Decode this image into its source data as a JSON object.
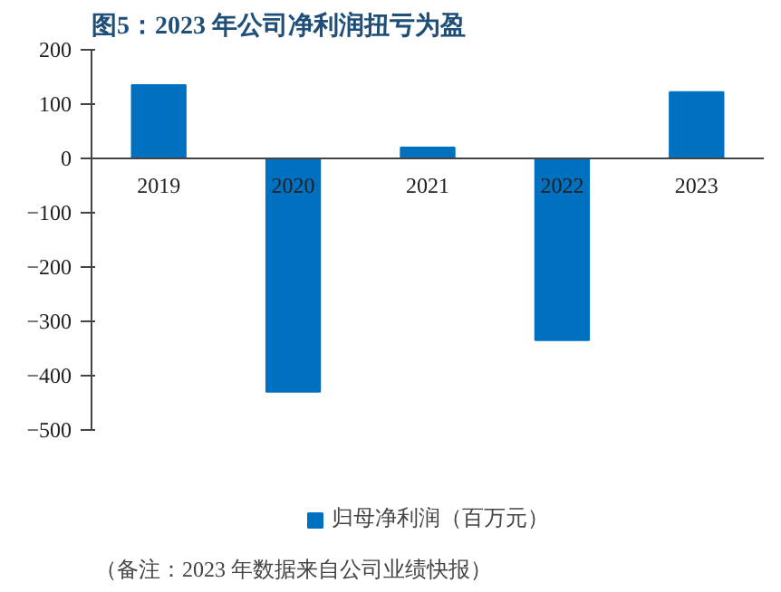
{
  "chart_data": {
    "type": "bar",
    "title": "图5：2023 年公司净利润扭亏为盈",
    "categories": [
      "2019",
      "2020",
      "2021",
      "2022",
      "2023"
    ],
    "series": [
      {
        "name": "归母净利润（百万元）",
        "color": "#0070c0",
        "values": [
          135,
          -430,
          20,
          -335,
          122
        ]
      }
    ],
    "ylim": [
      -500,
      200
    ],
    "yticks": [
      -500,
      -400,
      -300,
      -200,
      -100,
      0,
      100,
      200
    ],
    "grid": false,
    "legend": "bottom",
    "annotations": [
      "（备注：2023 年数据来自公司业绩快报）"
    ]
  }
}
